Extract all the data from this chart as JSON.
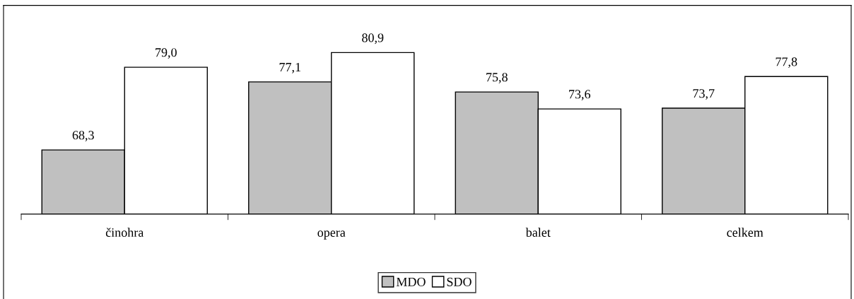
{
  "chart_data": {
    "type": "bar",
    "categories": [
      "činohra",
      "opera",
      "balet",
      "celkem"
    ],
    "series": [
      {
        "name": "MDO",
        "color": "#c0c0c0",
        "values": [
          68.3,
          77.1,
          75.8,
          73.7
        ],
        "value_labels": [
          "68,3",
          "77,1",
          "75,8",
          "73,7"
        ]
      },
      {
        "name": "SDO",
        "color": "#ffffff",
        "values": [
          79.0,
          80.9,
          73.6,
          77.8
        ],
        "value_labels": [
          "79,0",
          "80,9",
          "73,6",
          "77,8"
        ]
      }
    ],
    "ylim": [
      60,
      87
    ],
    "tick_labels": "x",
    "legend": "bottom"
  }
}
